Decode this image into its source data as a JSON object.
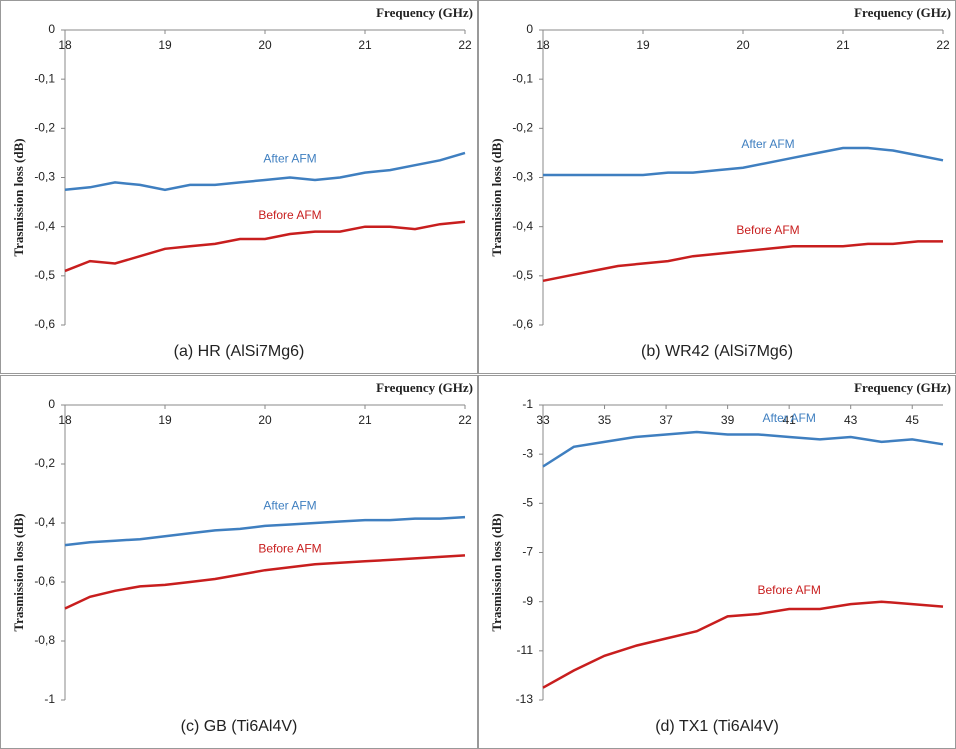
{
  "chart_data": [
    {
      "type": "line",
      "title": "(a) HR (AlSi7Mg6)",
      "xlabel": "Frequency (GHz)",
      "ylabel": "Trasmission loss (dB)",
      "x": [
        18,
        18.25,
        18.5,
        18.75,
        19,
        19.25,
        19.5,
        19.75,
        20,
        20.25,
        20.5,
        20.75,
        21,
        21.25,
        21.5,
        21.75,
        22
      ],
      "xlim": [
        18,
        22
      ],
      "xticks": [
        18,
        19,
        20,
        21,
        22
      ],
      "ylim": [
        -0.6,
        0
      ],
      "yticks": [
        0,
        {
          "value": -0.1,
          "label": "-0,1"
        },
        {
          "value": -0.2,
          "label": "-0,2"
        },
        {
          "value": -0.3,
          "label": "-0,3"
        },
        {
          "value": -0.4,
          "label": "-0,4"
        },
        {
          "value": -0.5,
          "label": "-0,5"
        },
        {
          "value": -0.6,
          "label": "-0,6"
        }
      ],
      "series": [
        {
          "name": "After AFM",
          "color": "#3f7fc0",
          "values": [
            -0.325,
            -0.32,
            -0.31,
            -0.315,
            -0.325,
            -0.315,
            -0.315,
            -0.31,
            -0.305,
            -0.3,
            -0.305,
            -0.3,
            -0.29,
            -0.285,
            -0.275,
            -0.265,
            -0.25
          ]
        },
        {
          "name": "Before AFM",
          "color": "#c81e1e",
          "values": [
            -0.49,
            -0.47,
            -0.475,
            -0.46,
            -0.445,
            -0.44,
            -0.435,
            -0.425,
            -0.425,
            -0.415,
            -0.41,
            -0.41,
            -0.4,
            -0.4,
            -0.405,
            -0.395,
            -0.39
          ]
        }
      ]
    },
    {
      "type": "line",
      "title": "(b) WR42 (AlSi7Mg6)",
      "xlabel": "Frequency (GHz)",
      "ylabel": "Trasmission loss (dB)",
      "x": [
        18,
        18.25,
        18.5,
        18.75,
        19,
        19.25,
        19.5,
        19.75,
        20,
        20.25,
        20.5,
        20.75,
        21,
        21.25,
        21.5,
        21.75,
        22
      ],
      "xlim": [
        18,
        22
      ],
      "xticks": [
        18,
        19,
        20,
        21,
        22
      ],
      "ylim": [
        -0.6,
        0
      ],
      "yticks": [
        0,
        {
          "value": -0.1,
          "label": "-0,1"
        },
        {
          "value": -0.2,
          "label": "-0,2"
        },
        {
          "value": -0.3,
          "label": "-0,3"
        },
        {
          "value": -0.4,
          "label": "-0,4"
        },
        {
          "value": -0.5,
          "label": "-0,5"
        },
        {
          "value": -0.6,
          "label": "-0,6"
        }
      ],
      "series": [
        {
          "name": "After AFM",
          "color": "#3f7fc0",
          "values": [
            -0.295,
            -0.295,
            -0.295,
            -0.295,
            -0.295,
            -0.29,
            -0.29,
            -0.285,
            -0.28,
            -0.27,
            -0.26,
            -0.25,
            -0.24,
            -0.24,
            -0.245,
            -0.255,
            -0.265
          ]
        },
        {
          "name": "Before AFM",
          "color": "#c81e1e",
          "values": [
            -0.51,
            -0.5,
            -0.49,
            -0.48,
            -0.475,
            -0.47,
            -0.46,
            -0.455,
            -0.45,
            -0.445,
            -0.44,
            -0.44,
            -0.44,
            -0.435,
            -0.435,
            -0.43,
            -0.43
          ]
        }
      ]
    },
    {
      "type": "line",
      "title": "(c) GB (Ti6Al4V)",
      "xlabel": "Frequency (GHz)",
      "ylabel": "Trasmission loss (dB)",
      "x": [
        18,
        18.25,
        18.5,
        18.75,
        19,
        19.25,
        19.5,
        19.75,
        20,
        20.25,
        20.5,
        20.75,
        21,
        21.25,
        21.5,
        21.75,
        22
      ],
      "xlim": [
        18,
        22
      ],
      "xticks": [
        18,
        19,
        20,
        21,
        22
      ],
      "ylim": [
        -1,
        0
      ],
      "yticks": [
        0,
        {
          "value": -0.2,
          "label": "-0,2"
        },
        {
          "value": -0.4,
          "label": "-0,4"
        },
        {
          "value": -0.6,
          "label": "-0,6"
        },
        {
          "value": -0.8,
          "label": "-0,8"
        },
        -1
      ],
      "series": [
        {
          "name": "After AFM",
          "color": "#3f7fc0",
          "values": [
            -0.475,
            -0.465,
            -0.46,
            -0.455,
            -0.445,
            -0.435,
            -0.425,
            -0.42,
            -0.41,
            -0.405,
            -0.4,
            -0.395,
            -0.39,
            -0.39,
            -0.385,
            -0.385,
            -0.38
          ]
        },
        {
          "name": "Before AFM",
          "color": "#c81e1e",
          "values": [
            -0.69,
            -0.65,
            -0.63,
            -0.615,
            -0.61,
            -0.6,
            -0.59,
            -0.575,
            -0.56,
            -0.55,
            -0.54,
            -0.535,
            -0.53,
            -0.525,
            -0.52,
            -0.515,
            -0.51
          ]
        }
      ]
    },
    {
      "type": "line",
      "title": "(d) TX1 (Ti6Al4V)",
      "xlabel": "Frequency (GHz)",
      "ylabel": "Trasmission loss (dB)",
      "x": [
        33,
        34,
        35,
        36,
        37,
        38,
        39,
        40,
        41,
        42,
        43,
        44,
        45,
        46
      ],
      "xlim": [
        33,
        46
      ],
      "xticks": [
        33,
        35,
        37,
        39,
        41,
        43,
        45
      ],
      "ylim": [
        -13,
        -1
      ],
      "yticks": [
        -1,
        -3,
        -5,
        -7,
        -9,
        -11,
        -13
      ],
      "series": [
        {
          "name": "After AFM",
          "color": "#3f7fc0",
          "values": [
            -3.5,
            -2.7,
            -2.5,
            -2.3,
            -2.2,
            -2.1,
            -2.2,
            -2.2,
            -2.3,
            -2.4,
            -2.3,
            -2.5,
            -2.4,
            -2.6
          ]
        },
        {
          "name": "Before AFM",
          "color": "#c81e1e",
          "values": [
            -12.5,
            -11.8,
            -11.2,
            -10.8,
            -10.5,
            -10.2,
            -9.6,
            -9.5,
            -9.3,
            -9.3,
            -9.1,
            -9.0,
            -9.1,
            -9.2
          ]
        }
      ]
    }
  ]
}
